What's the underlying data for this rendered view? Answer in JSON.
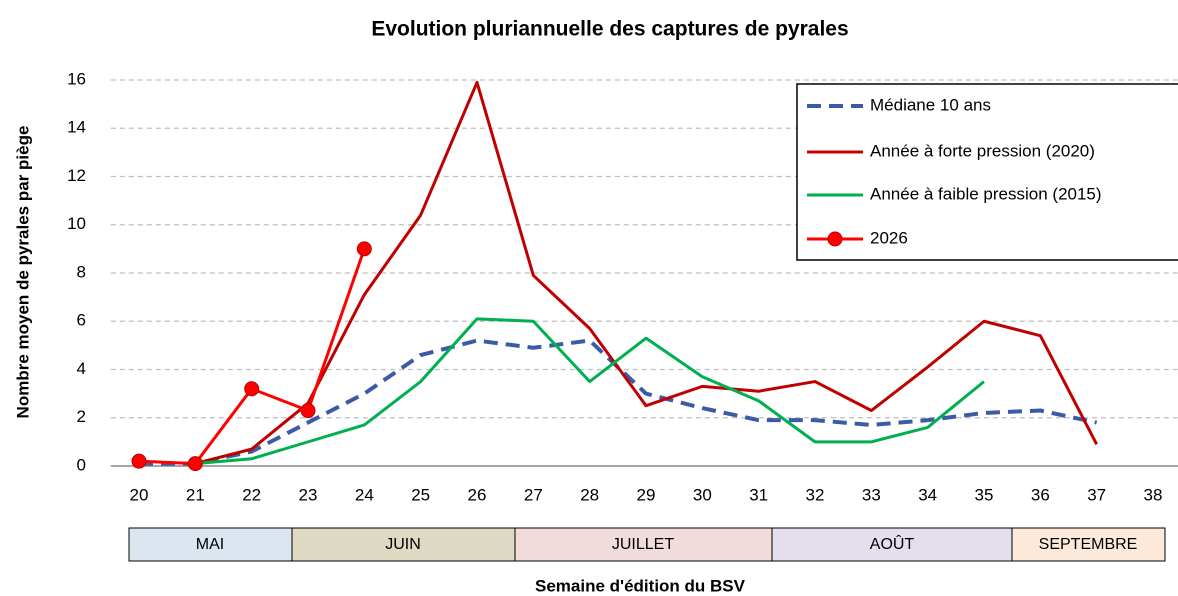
{
  "chart_data": {
    "type": "line",
    "title": "Evolution pluriannuelle des captures de pyrales",
    "x_label": "Semaine d'édition du BSV",
    "y_label": "Nombre moyen de pyrales par piège",
    "x": [
      20,
      21,
      22,
      23,
      24,
      25,
      26,
      27,
      28,
      29,
      30,
      31,
      32,
      33,
      34,
      35,
      36,
      37,
      38
    ],
    "xlim": [
      20,
      38
    ],
    "ylim": [
      0,
      16
    ],
    "yticks": [
      0,
      2,
      4,
      6,
      8,
      10,
      12,
      14,
      16
    ],
    "grid": true,
    "legend": "upper right",
    "months": [
      "MAI",
      "JUIN",
      "JUILLET",
      "AOÛT",
      "SEPTEMBRE"
    ],
    "series": [
      {
        "name": "Médiane 10 ans",
        "color": "#3b5ba5",
        "style": "dashed",
        "values": [
          0.1,
          0.1,
          0.6,
          1.8,
          3.0,
          4.6,
          5.2,
          4.9,
          5.2,
          3.0,
          2.4,
          1.9,
          1.9,
          1.7,
          1.9,
          2.2,
          2.3,
          1.8,
          null
        ]
      },
      {
        "name": "Année à forte pression (2020)",
        "color": "#c00000",
        "style": "solid",
        "values": [
          null,
          0.1,
          0.7,
          2.6,
          7.1,
          10.4,
          15.9,
          7.9,
          5.7,
          2.5,
          3.3,
          3.1,
          3.5,
          2.3,
          4.1,
          6.0,
          5.4,
          0.9,
          null
        ]
      },
      {
        "name": "Année à faible pression (2015)",
        "color": "#00b050",
        "style": "solid",
        "values": [
          null,
          0.1,
          0.3,
          1.0,
          1.7,
          3.5,
          6.1,
          6.0,
          3.5,
          5.3,
          3.7,
          2.7,
          1.0,
          1.0,
          1.6,
          3.5,
          null,
          null,
          null
        ]
      },
      {
        "name": "2026",
        "color": "#ff0000",
        "style": "markers",
        "values": [
          0.2,
          0.1,
          3.2,
          2.3,
          9.0,
          null,
          null,
          null,
          null,
          null,
          null,
          null,
          null,
          null,
          null,
          null,
          null,
          null,
          null
        ]
      }
    ]
  }
}
